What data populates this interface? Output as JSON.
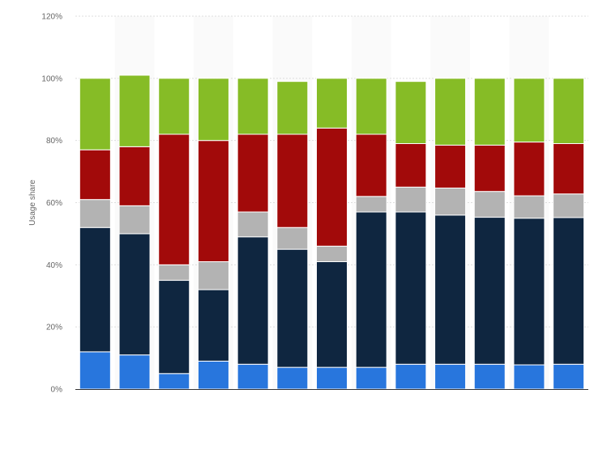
{
  "chart_data": {
    "type": "bar",
    "stacked": true,
    "categories": [
      "",
      "",
      "",
      "",
      "",
      "",
      "",
      "",
      "",
      "",
      "",
      "",
      ""
    ],
    "series": [
      {
        "color": "#2876dd",
        "values": [
          12,
          11,
          5,
          9,
          8,
          7,
          7,
          7,
          8,
          8,
          8,
          7.8,
          8
        ]
      },
      {
        "color": "#0f2640",
        "values": [
          40,
          39,
          30,
          23,
          41,
          38,
          34,
          50,
          49,
          48,
          47.3,
          47.2,
          47.2
        ]
      },
      {
        "color": "#b3b3b3",
        "values": [
          9,
          9,
          5,
          9,
          8,
          7,
          5,
          5,
          8,
          8.7,
          8.3,
          7.2,
          7.6
        ]
      },
      {
        "color": "#a20a0a",
        "values": [
          16,
          19,
          42,
          39,
          25,
          30,
          38,
          20,
          14,
          13.8,
          14.9,
          17.3,
          16.2
        ]
      },
      {
        "color": "#86bc26",
        "values": [
          23,
          23,
          18,
          20,
          18,
          17,
          16,
          18,
          20,
          21.5,
          21.5,
          20.5,
          21
        ]
      }
    ],
    "ylabel": "Usage share",
    "yticks": [
      "0%",
      "20%",
      "40%",
      "60%",
      "80%",
      "100%",
      "120%"
    ],
    "ylim": [
      0,
      120
    ],
    "grid": true,
    "legend": "none"
  }
}
